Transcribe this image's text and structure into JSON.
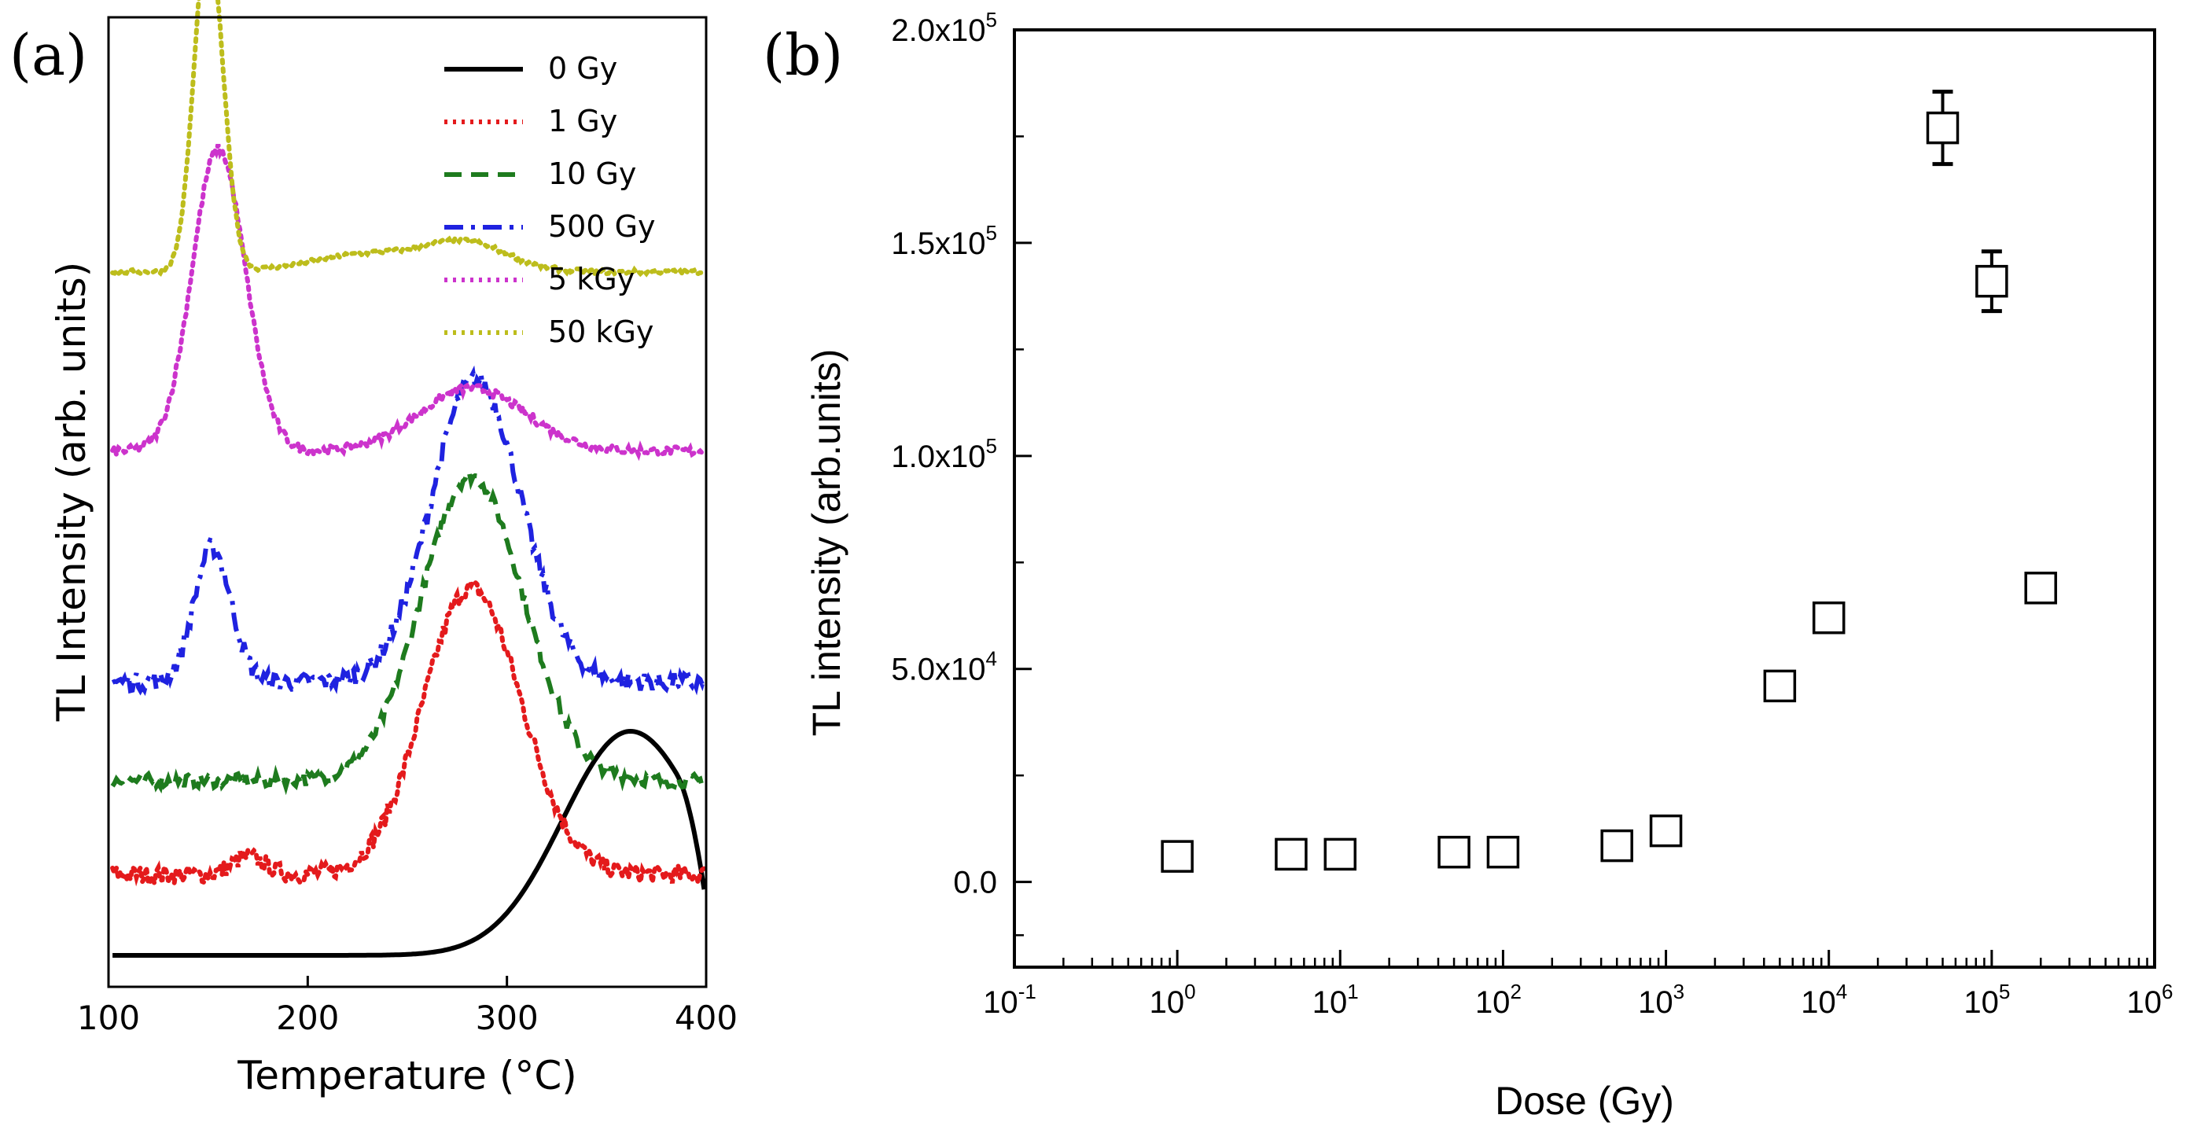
{
  "chart_data": [
    {
      "panel": "(a)",
      "type": "line",
      "xlabel": "Temperature (°C)",
      "ylabel": "TL Intensity (arb. units)",
      "xlim": [
        100,
        400
      ],
      "xticks": [
        "100",
        "200",
        "300",
        "400"
      ],
      "y_ticks_shown": false,
      "legend_position": "top-right",
      "series": [
        {
          "name": "0 Gy",
          "color": "#000000",
          "style": "solid",
          "offset": 0,
          "peaks": [
            {
              "t": 362,
              "h": 1.0,
              "w": 34
            }
          ],
          "noise": 0,
          "end_drop": true
        },
        {
          "name": "1 Gy",
          "color": "#e41a1c",
          "style": "dotted",
          "offset": 0.36,
          "peaks": [
            {
              "t": 282,
              "h": 1.28,
              "w": 24
            },
            {
              "t": 170,
              "h": 0.08,
              "w": 8
            }
          ],
          "noise": 0.04
        },
        {
          "name": "10 Gy",
          "color": "#1e7b1e",
          "style": "dashed",
          "offset": 0.78,
          "peaks": [
            {
              "t": 282,
              "h": 1.36,
              "w": 25
            }
          ],
          "noise": 0.03
        },
        {
          "name": "500 Gy",
          "color": "#1f22e0",
          "style": "dashdot",
          "offset": 1.22,
          "peaks": [
            {
              "t": 152,
              "h": 0.6,
              "w": 9
            },
            {
              "t": 284,
              "h": 1.35,
              "w": 22
            }
          ],
          "noise": 0.04
        },
        {
          "name": "5 kGy",
          "color": "#cc33cc",
          "style": "dotted",
          "offset": 2.25,
          "peaks": [
            {
              "t": 155,
              "h": 1.35,
              "w": 13
            },
            {
              "t": 282,
              "h": 0.28,
              "w": 26
            }
          ],
          "noise": 0.02
        },
        {
          "name": "50 kGy",
          "color": "#bdbd1c",
          "style": "dotted",
          "offset": 3.05,
          "peaks": [
            {
              "t": 150,
              "h": 1.52,
              "w": 7
            },
            {
              "t": 230,
              "h": 0.08,
              "w": 28
            },
            {
              "t": 280,
              "h": 0.12,
              "w": 20
            }
          ],
          "noise": 0.01
        }
      ]
    },
    {
      "panel": "(b)",
      "type": "scatter",
      "xlabel": "Dose (Gy)",
      "ylabel": "TL intensity (arb.units)",
      "xscale": "log",
      "xlim_exp": [
        -1,
        6
      ],
      "ylim": [
        -20000,
        200000
      ],
      "xtick_base": "10",
      "xtick_exponents": [
        "-1",
        "0",
        "1",
        "2",
        "3",
        "4",
        "5",
        "6"
      ],
      "yticks": [
        {
          "value": 0,
          "mant": "0.0",
          "exp": ""
        },
        {
          "value": 50000,
          "mant": "5.0x10",
          "exp": "4"
        },
        {
          "value": 100000,
          "mant": "1.0x10",
          "exp": "5"
        },
        {
          "value": 150000,
          "mant": "1.5x10",
          "exp": "5"
        },
        {
          "value": 200000,
          "mant": "2.0x10",
          "exp": "5"
        }
      ],
      "marker": "open-square",
      "points": [
        {
          "x": 1,
          "y": 6000
        },
        {
          "x": 5,
          "y": 6500
        },
        {
          "x": 10,
          "y": 6500
        },
        {
          "x": 50,
          "y": 7000
        },
        {
          "x": 100,
          "y": 7000
        },
        {
          "x": 500,
          "y": 8500
        },
        {
          "x": 1000,
          "y": 12000
        },
        {
          "x": 5000,
          "y": 46000
        },
        {
          "x": 10000,
          "y": 62000
        },
        {
          "x": 50000,
          "y": 177000,
          "err": 8500
        },
        {
          "x": 100000,
          "y": 141000,
          "err": 7000
        },
        {
          "x": 200000,
          "y": 69000
        }
      ]
    }
  ]
}
